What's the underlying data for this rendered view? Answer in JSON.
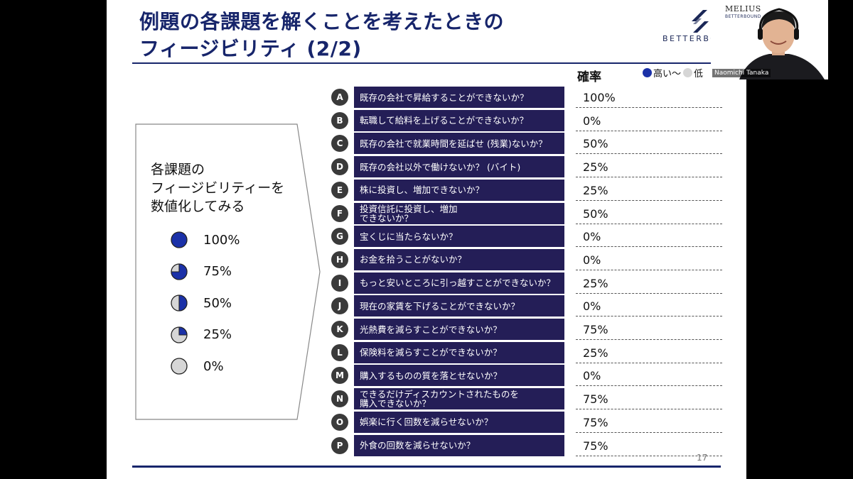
{
  "slide": {
    "title_line1": "例題の各課題を解くことを考えたときの",
    "title_line2": "フィージビリティ (2/2)",
    "logo_text": "BETTERBO",
    "rate_header": "確率",
    "legend_high": "高い〜",
    "legend_low": "低",
    "left_box_text": [
      "各課題の",
      "フィージビリティーを",
      "数値化してみる"
    ],
    "pie_legend": [
      {
        "value": 100,
        "label": "100%"
      },
      {
        "value": 75,
        "label": "75%"
      },
      {
        "value": 50,
        "label": "50%"
      },
      {
        "value": 25,
        "label": "25%"
      },
      {
        "value": 0,
        "label": "0%"
      }
    ],
    "items": [
      {
        "letter": "A",
        "question": "既存の会社で昇給することができないか？",
        "rate": "100%"
      },
      {
        "letter": "B",
        "question": "転職して給料を上げることができないか？",
        "rate": "0%"
      },
      {
        "letter": "C",
        "question": "既存の会社で就業時間を延ばせ (残業)ないか？",
        "rate": "50%"
      },
      {
        "letter": "D",
        "question": "既存の会社以外で働けないか？ (バイト)",
        "rate": "25%"
      },
      {
        "letter": "E",
        "question": "株に投資し、増加できないか？",
        "rate": "25%"
      },
      {
        "letter": "F",
        "question": "投資信託に投資し、増加\nできないか？",
        "rate": "50%"
      },
      {
        "letter": "G",
        "question": "宝くじに当たらないか？",
        "rate": "0%"
      },
      {
        "letter": "H",
        "question": "お金を拾うことがないか？",
        "rate": "0%"
      },
      {
        "letter": "I",
        "question": "もっと安いところに引っ越すことができないか？",
        "rate": "25%"
      },
      {
        "letter": "J",
        "question": "現在の家賃を下げることができないか？",
        "rate": "0%"
      },
      {
        "letter": "K",
        "question": "光熱費を減らすことができないか？",
        "rate": "75%"
      },
      {
        "letter": "L",
        "question": "保険料を減らすことができないか？",
        "rate": "25%"
      },
      {
        "letter": "M",
        "question": "購入するものの質を落とせないか？",
        "rate": "0%"
      },
      {
        "letter": "N",
        "question": "できるだけディスカウントされたものを\n購入できないか？",
        "rate": "75%"
      },
      {
        "letter": "O",
        "question": "娯楽に行く回数を減らせないか？",
        "rate": "75%"
      },
      {
        "letter": "P",
        "question": "外食の回数を減らせないか？",
        "rate": "75%"
      }
    ],
    "page_number": "17"
  },
  "camera": {
    "brand": "MELIUS",
    "sub_brand": "BETTERBOUND",
    "participant_name": "Naomichi Tanaka"
  },
  "colors": {
    "navy": "#17256b",
    "row_bg": "#241e57",
    "pie_fill": "#1b31a8",
    "pie_empty": "#d6d6d6"
  }
}
